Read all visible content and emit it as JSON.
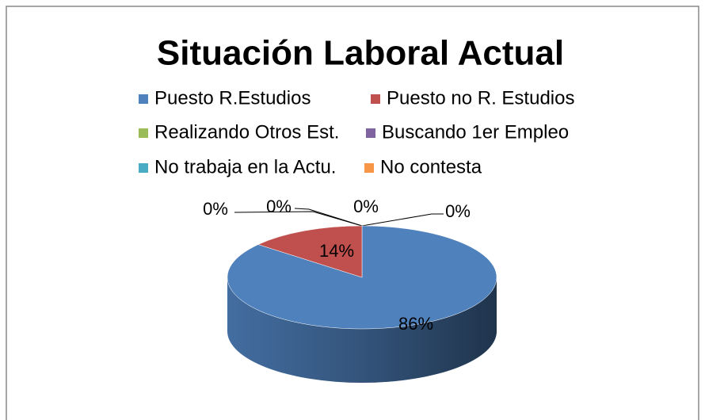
{
  "chart_data": {
    "type": "pie",
    "title": "Situación Laboral Actual",
    "categories": [
      "Puesto R.Estudios",
      "Puesto no R. Estudios",
      "Realizando Otros Est.",
      "Buscando 1er Empleo",
      "No trabaja en la Actu.",
      "No contesta"
    ],
    "values": [
      86,
      14,
      0,
      0,
      0,
      0
    ],
    "value_labels": [
      "86%",
      "14%",
      "0%",
      "0%",
      "0%",
      "0%"
    ],
    "colors": [
      "#4f81bd",
      "#c0504d",
      "#9bbb59",
      "#8064a2",
      "#4bacc6",
      "#f79646"
    ],
    "legend": "top"
  }
}
